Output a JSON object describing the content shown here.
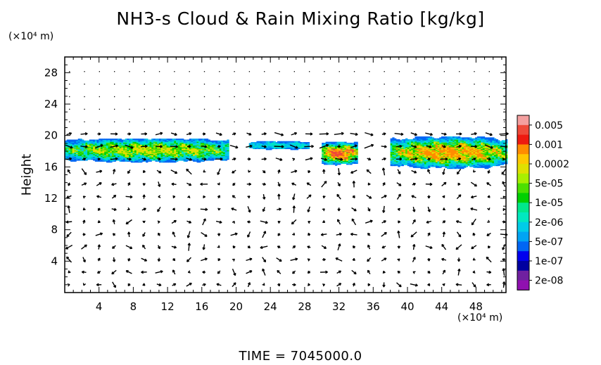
{
  "chart_data": {
    "type": "heatmap",
    "title": "NH3-s Cloud & Rain Mixing Ratio [kg/kg]",
    "ylabel": "Height",
    "x_unit_label": "(×10⁴ m)",
    "y_unit_label": "(×10⁴ m)",
    "xlim": [
      0,
      51.5
    ],
    "ylim": [
      0,
      30
    ],
    "x_ticks": [
      4,
      8,
      12,
      16,
      20,
      24,
      28,
      32,
      36,
      40,
      44,
      48
    ],
    "y_ticks": [
      4,
      8,
      12,
      16,
      20,
      24,
      28
    ],
    "colorbar": {
      "labels": [
        "0.005",
        "0.001",
        "0.0002",
        "5e-05",
        "1e-05",
        "2e-06",
        "5e-07",
        "1e-07",
        "2e-08"
      ],
      "colors": [
        "#f4a0a0",
        "#ee4a3a",
        "#ee1a10",
        "#ff8c00",
        "#ffc800",
        "#e0e000",
        "#a8ef00",
        "#4ce000",
        "#00d000",
        "#00e88c",
        "#00e8c0",
        "#00cce8",
        "#00a4f4",
        "#0066f4",
        "#0000ee",
        "#0000a0",
        "#7020a0",
        "#9010b0"
      ]
    },
    "cloud_regions": [
      {
        "x_range": [
          0,
          19
        ],
        "z_range": [
          16.6,
          19.6
        ],
        "peak": "5e-05"
      },
      {
        "x_range": [
          21.5,
          28.5
        ],
        "z_range": [
          18.2,
          19.2
        ],
        "peak": "2e-06"
      },
      {
        "x_range": [
          30,
          34
        ],
        "z_range": [
          16.2,
          19.2
        ],
        "peak": "0.001"
      },
      {
        "x_range": [
          38,
          51.5
        ],
        "z_range": [
          15.8,
          19.8
        ],
        "peak": "0.0002"
      }
    ],
    "overlay": "wind vectors",
    "time_label": "TIME  =  7045000.0"
  }
}
